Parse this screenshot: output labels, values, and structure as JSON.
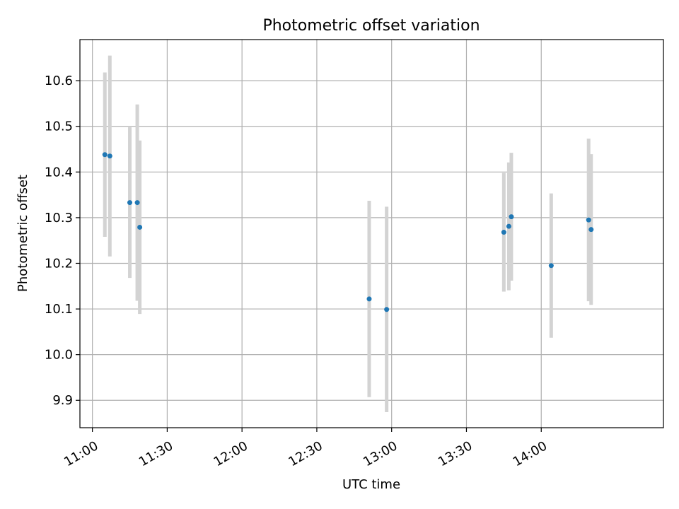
{
  "chart_data": {
    "type": "scatter",
    "title": "Photometric offset variation",
    "xlabel": "UTC time",
    "ylabel": "Photometric offset",
    "x_axis_type": "time",
    "xlim": [
      "10:55",
      "14:49"
    ],
    "ylim": [
      9.84,
      10.69
    ],
    "grid": true,
    "x_ticks": [
      "11:00",
      "11:30",
      "12:00",
      "12:30",
      "13:00",
      "13:30",
      "14:00"
    ],
    "y_ticks": [
      "9.9",
      "10.0",
      "10.1",
      "10.2",
      "10.3",
      "10.4",
      "10.5",
      "10.6"
    ],
    "colors": {
      "point": "#1f77b4",
      "error_bar": "#d3d3d3",
      "grid": "#b0b0b0"
    },
    "series": [
      {
        "points": [
          {
            "x": "11:05",
            "y": 10.438,
            "err": 0.18
          },
          {
            "x": "11:07",
            "y": 10.435,
            "err": 0.22
          },
          {
            "x": "11:15",
            "y": 10.333,
            "err": 0.165
          },
          {
            "x": "11:18",
            "y": 10.333,
            "err": 0.215
          },
          {
            "x": "11:19",
            "y": 10.279,
            "err": 0.19
          },
          {
            "x": "12:51",
            "y": 10.122,
            "err": 0.215
          },
          {
            "x": "12:58",
            "y": 10.099,
            "err": 0.225
          },
          {
            "x": "13:45",
            "y": 10.268,
            "err": 0.13
          },
          {
            "x": "13:47",
            "y": 10.281,
            "err": 0.14
          },
          {
            "x": "13:48",
            "y": 10.302,
            "err": 0.14
          },
          {
            "x": "14:04",
            "y": 10.195,
            "err": 0.158
          },
          {
            "x": "14:19",
            "y": 10.295,
            "err": 0.178
          },
          {
            "x": "14:20",
            "y": 10.274,
            "err": 0.165
          }
        ]
      }
    ]
  }
}
